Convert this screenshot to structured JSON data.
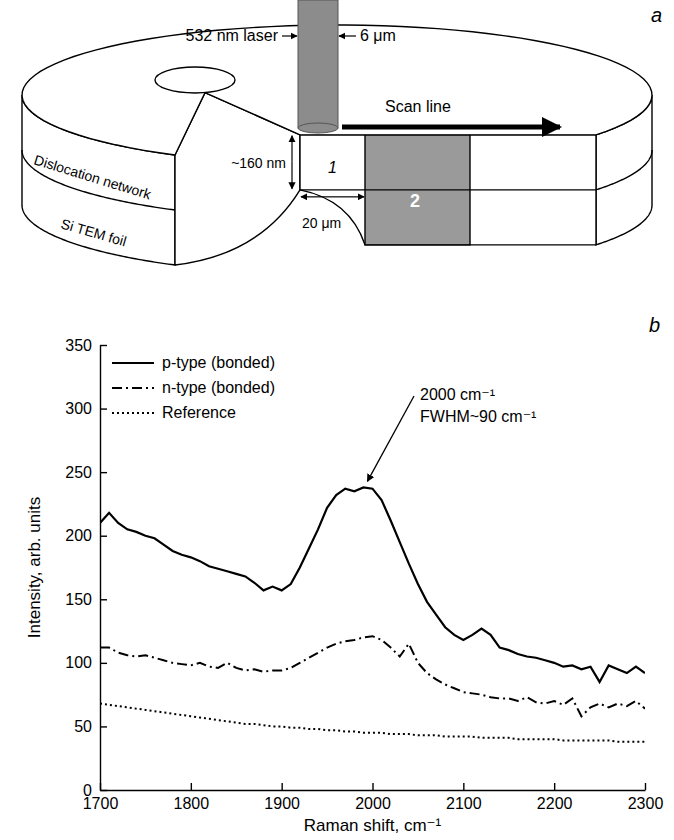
{
  "diagram": {
    "panel_label": "a",
    "laser": "532 nm laser",
    "beam_width": "6 μm",
    "scan_line": "Scan line",
    "thickness": "~160 nm",
    "length": "20 μm",
    "region_1": "1",
    "region_2": "2",
    "layer": "Dislocation network",
    "foil": "Si TEM foil"
  },
  "chart_data": {
    "type": "line",
    "panel_label": "b",
    "x_label": "Raman shift, cm⁻¹",
    "y_label": "Intensity, arb. units",
    "x": [
      1700,
      1710,
      1720,
      1730,
      1740,
      1750,
      1760,
      1770,
      1780,
      1790,
      1800,
      1810,
      1820,
      1830,
      1840,
      1850,
      1860,
      1870,
      1880,
      1890,
      1900,
      1910,
      1920,
      1930,
      1940,
      1950,
      1960,
      1970,
      1980,
      1990,
      2000,
      2010,
      2020,
      2030,
      2040,
      2050,
      2060,
      2070,
      2080,
      2090,
      2100,
      2110,
      2120,
      2130,
      2140,
      2150,
      2160,
      2170,
      2180,
      2190,
      2200,
      2210,
      2220,
      2230,
      2240,
      2250,
      2260,
      2270,
      2280,
      2290,
      2300
    ],
    "series": [
      {
        "name": "p-type (bonded)",
        "color": "#000000",
        "line_style": "solid",
        "values": [
          210,
          218,
          210,
          205,
          203,
          200,
          198,
          193,
          188,
          185,
          183,
          180,
          176,
          174,
          172,
          170,
          168,
          163,
          157,
          160,
          157,
          162,
          175,
          190,
          205,
          222,
          232,
          237,
          235,
          238,
          237,
          228,
          212,
          195,
          178,
          162,
          148,
          138,
          128,
          122,
          118,
          122,
          127,
          122,
          112,
          110,
          107,
          105,
          104,
          102,
          100,
          97,
          98,
          95,
          97,
          85,
          98,
          95,
          92,
          97,
          92
        ]
      },
      {
        "name": "n-type (bonded)",
        "color": "#000000",
        "line_style": "dashdot",
        "values": [
          112,
          112,
          108,
          106,
          105,
          106,
          104,
          102,
          100,
          99,
          98,
          100,
          97,
          96,
          100,
          96,
          94,
          95,
          93,
          94,
          94,
          96,
          100,
          104,
          108,
          112,
          115,
          117,
          118,
          120,
          121,
          118,
          112,
          105,
          115,
          100,
          92,
          87,
          83,
          80,
          77,
          76,
          75,
          73,
          72,
          72,
          70,
          73,
          69,
          68,
          70,
          67,
          72,
          58,
          65,
          68,
          65,
          68,
          66,
          70,
          64
        ]
      },
      {
        "name": "Reference",
        "color": "#000000",
        "line_style": "dotted",
        "values": [
          68,
          67,
          66,
          65,
          64,
          63,
          62,
          61,
          60,
          59,
          58,
          57,
          56,
          55,
          54,
          53,
          52,
          52,
          51,
          50,
          50,
          49,
          49,
          48,
          48,
          47,
          47,
          46,
          46,
          45,
          45,
          45,
          44,
          44,
          44,
          43,
          43,
          43,
          42,
          42,
          42,
          42,
          41,
          41,
          41,
          41,
          40,
          40,
          40,
          40,
          40,
          39,
          39,
          39,
          39,
          39,
          39,
          38,
          38,
          38,
          38
        ]
      }
    ],
    "annotations": [
      "2000 cm⁻¹",
      "FWHM~90 cm⁻¹"
    ],
    "xlim": [
      1700,
      2300
    ],
    "ylim": [
      0,
      350
    ],
    "xticks": [
      1700,
      1800,
      1900,
      2000,
      2100,
      2200,
      2300
    ],
    "yticks": [
      0,
      50,
      100,
      150,
      200,
      250,
      300,
      350
    ],
    "legend": "upper left",
    "grid": false
  }
}
